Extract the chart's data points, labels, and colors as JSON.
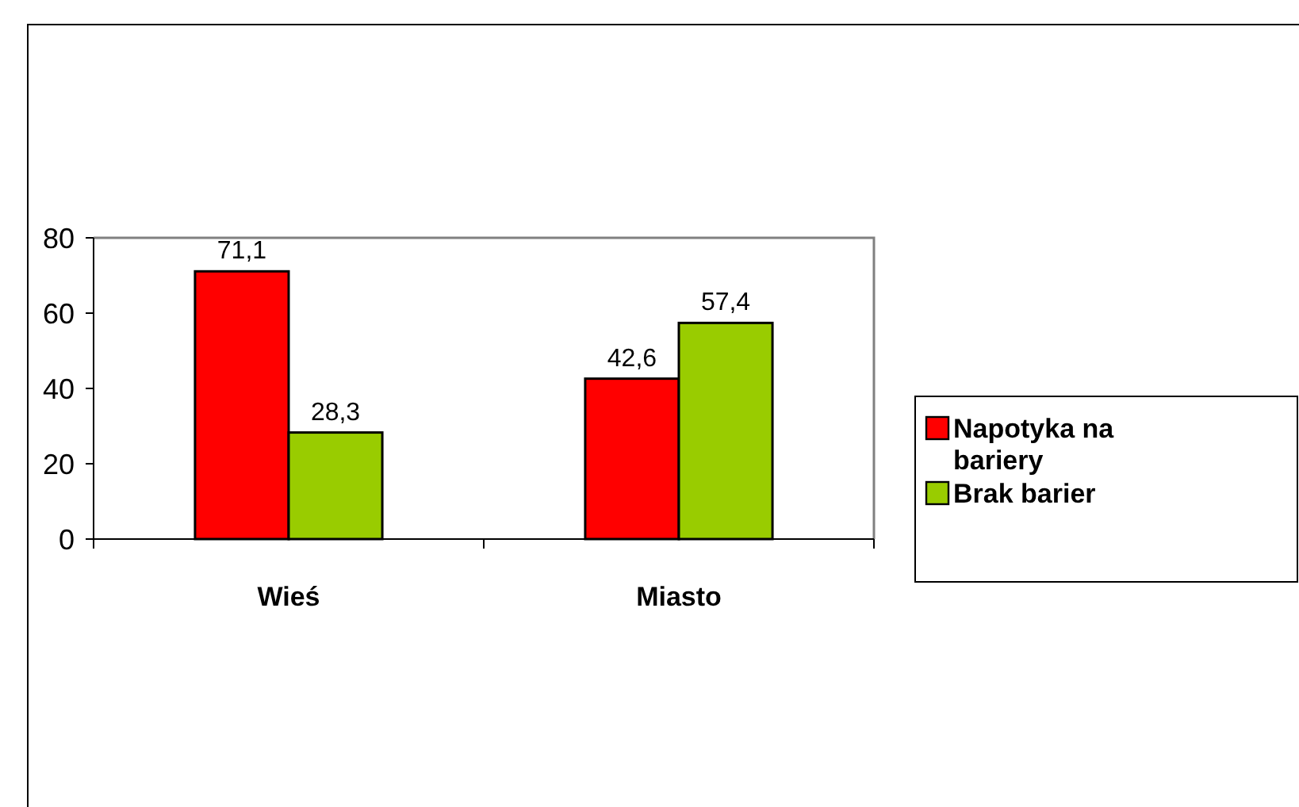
{
  "chart_data": {
    "type": "bar",
    "categories": [
      "Wieś",
      "Miasto"
    ],
    "series": [
      {
        "name": "Napotyka na bariery",
        "color": "#ff0000",
        "values": [
          71.1,
          42.6
        ],
        "value_labels": [
          "71,1",
          "42,6"
        ]
      },
      {
        "name": "Brak barier",
        "color": "#99cc00",
        "values": [
          28.3,
          57.4
        ],
        "value_labels": [
          "28,3",
          "57,4"
        ]
      }
    ],
    "ylim": [
      0,
      80
    ],
    "yticks": [
      0,
      20,
      40,
      60,
      80
    ],
    "grid": false,
    "legend": "right"
  }
}
